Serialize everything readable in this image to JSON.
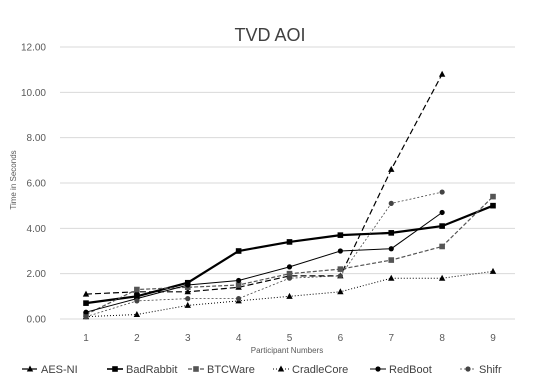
{
  "chart_data": {
    "type": "line",
    "title": "TVD AOI",
    "xlabel": "Participant Numbers",
    "ylabel": "Time in Seconds",
    "ylim": [
      0,
      12
    ],
    "yticks": [
      "0.00",
      "2.00",
      "4.00",
      "6.00",
      "8.00",
      "10.00",
      "12.00"
    ],
    "x": [
      1,
      2,
      3,
      4,
      5,
      6,
      7,
      8,
      9
    ],
    "grid": true,
    "legend_position": "bottom",
    "series": [
      {
        "name": "AES-NI",
        "values": [
          1.1,
          1.2,
          1.2,
          1.4,
          1.9,
          1.9,
          6.6,
          10.8,
          null
        ],
        "color": "#000000",
        "dash": "6,3",
        "marker": "triangle",
        "width": 1.2
      },
      {
        "name": "BadRabbit",
        "values": [
          0.7,
          1.0,
          1.6,
          3.0,
          3.4,
          3.7,
          3.8,
          4.1,
          5.0
        ],
        "color": "#000000",
        "dash": "",
        "marker": "square",
        "width": 2.2
      },
      {
        "name": "BTCWare",
        "values": [
          0.2,
          1.3,
          1.4,
          1.5,
          2.0,
          2.2,
          2.6,
          3.2,
          5.4
        ],
        "color": "#555555",
        "dash": "4,2",
        "marker": "square",
        "width": 1.2
      },
      {
        "name": "CradleCore",
        "values": [
          0.1,
          0.2,
          0.6,
          0.8,
          1.0,
          1.2,
          1.8,
          1.8,
          2.1
        ],
        "color": "#000000",
        "dash": "1,2",
        "marker": "triangle",
        "width": 1.0
      },
      {
        "name": "RedBoot",
        "values": [
          0.3,
          0.9,
          1.5,
          1.7,
          2.3,
          3.0,
          3.1,
          4.7,
          null
        ],
        "color": "#000000",
        "dash": "",
        "marker": "circle",
        "width": 1.0
      },
      {
        "name": "Shifr",
        "values": [
          0.1,
          0.8,
          0.9,
          0.9,
          1.8,
          1.9,
          5.1,
          5.6,
          null
        ],
        "color": "#444444",
        "dash": "2,2",
        "marker": "circle",
        "width": 0.8
      }
    ]
  }
}
